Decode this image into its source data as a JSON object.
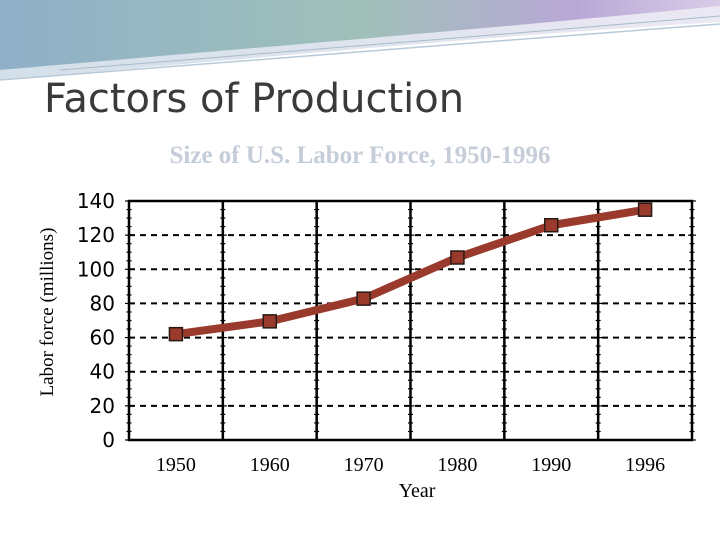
{
  "slide": {
    "title": "Factors of Production"
  },
  "chart_data": {
    "type": "line",
    "title": "Size of U.S. Labor Force, 1950-1996",
    "xlabel": "Year",
    "ylabel": "Labor force (millions)",
    "x": [
      1950,
      1960,
      1970,
      1980,
      1990,
      1996
    ],
    "categories": [
      "1950",
      "1960",
      "1970",
      "1980",
      "1990",
      "1996"
    ],
    "values": [
      62,
      69.5,
      82.8,
      106.9,
      125.8,
      134.9
    ],
    "ylim": [
      0,
      140
    ],
    "yticks": [
      "0",
      "20",
      "40",
      "60",
      "80",
      "100",
      "120",
      "140"
    ],
    "grid": true,
    "colors": {
      "line": "#9a3a2c",
      "marker": "#9a3a2c",
      "grid": "#000000"
    }
  }
}
